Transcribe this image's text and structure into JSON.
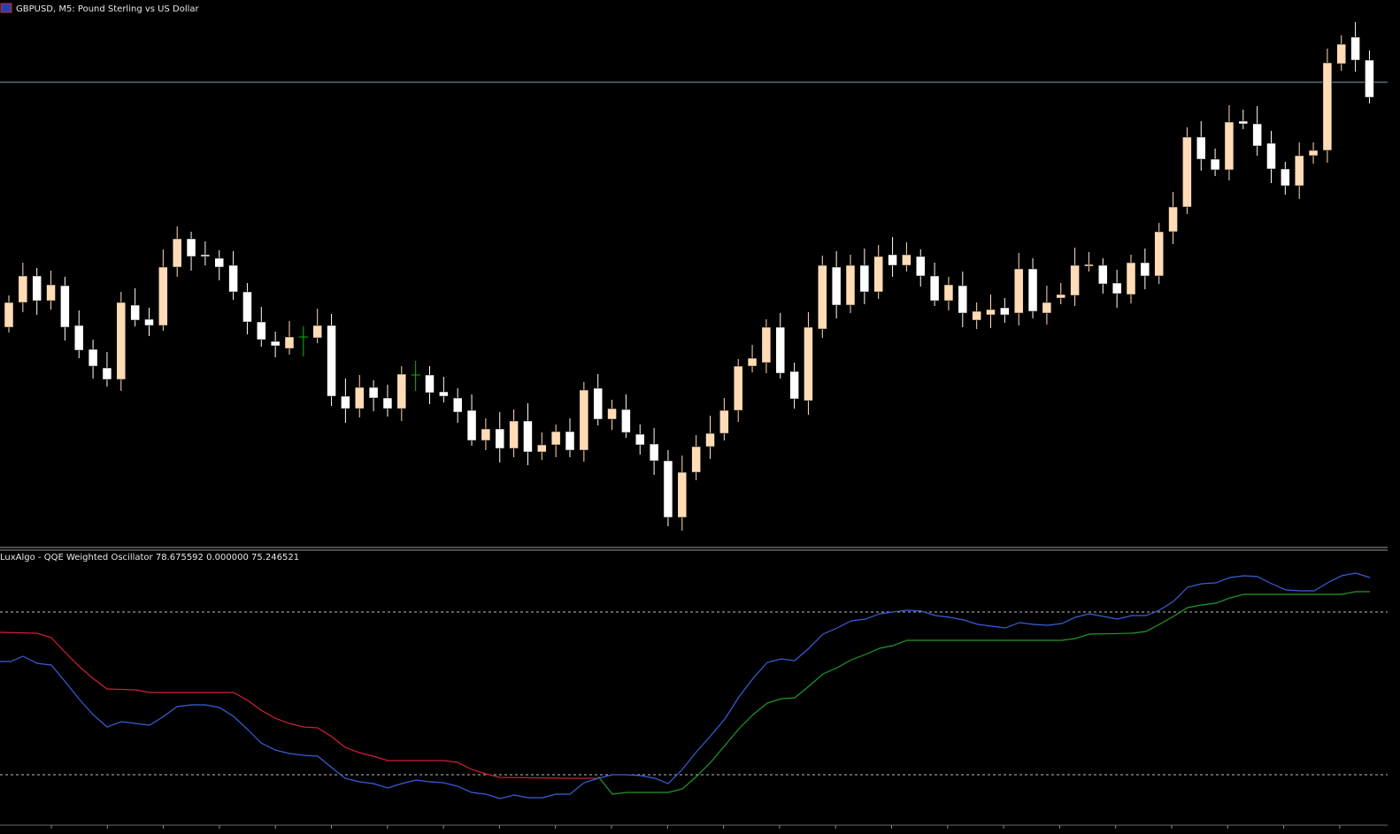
{
  "header": {
    "title": "GBPUSD, M5:  Pound Sterling vs US Dollar"
  },
  "indicator": {
    "label": "LuxAlgo - QQE Weighted Oscillator 78.675592 0.000000 75.246521"
  }
}
